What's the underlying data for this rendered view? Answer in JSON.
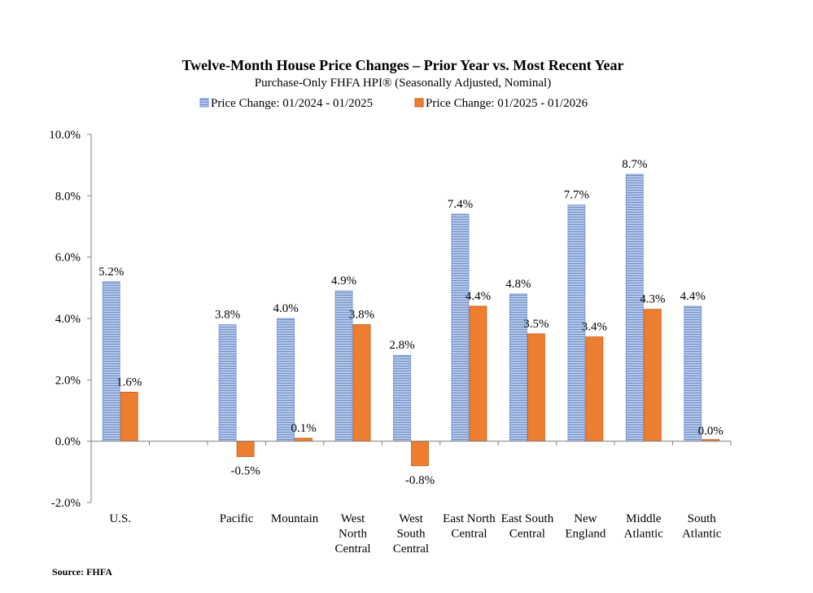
{
  "chart_data": {
    "type": "bar",
    "title": "Twelve-Month House Price Changes – Prior Year vs. Most Recent Year",
    "subtitle": "Purchase-Only FHFA HPI® (Seasonally Adjusted, Nominal)",
    "categories": [
      [
        "U.S."
      ],
      [
        ""
      ],
      [
        "Pacific"
      ],
      [
        "Mountain"
      ],
      [
        "West",
        "North",
        "Central"
      ],
      [
        "West",
        "South",
        "Central"
      ],
      [
        "East North",
        "Central"
      ],
      [
        "East South",
        "Central"
      ],
      [
        "New",
        "England"
      ],
      [
        "Middle",
        "Atlantic"
      ],
      [
        "South",
        "Atlantic"
      ]
    ],
    "series": [
      {
        "name": "Price Change:  01/2024 - 01/2025",
        "color": "#8EA9DB",
        "values": [
          5.2,
          null,
          3.8,
          4.0,
          4.9,
          2.8,
          7.4,
          4.8,
          7.7,
          8.7,
          4.4
        ],
        "labels": [
          "5.2%",
          "",
          "3.8%",
          "4.0%",
          "4.9%",
          "2.8%",
          "7.4%",
          "4.8%",
          "7.7%",
          "8.7%",
          "4.4%"
        ]
      },
      {
        "name": "Price Change:  01/2025 - 01/2026",
        "color": "#ED7D31",
        "values": [
          1.6,
          null,
          -0.5,
          0.1,
          3.8,
          -0.8,
          4.4,
          3.5,
          3.4,
          4.3,
          0.0
        ],
        "labels": [
          "1.6%",
          "",
          "-0.5%",
          "0.1%",
          "3.8%",
          "-0.8%",
          "4.4%",
          "3.5%",
          "3.4%",
          "4.3%",
          "0.0%"
        ]
      }
    ],
    "ylim": [
      -2.0,
      10.0
    ],
    "yticks": [
      -2.0,
      0.0,
      2.0,
      4.0,
      6.0,
      8.0,
      10.0
    ],
    "ytick_labels": [
      "-2.0%",
      "0.0%",
      "2.0%",
      "4.0%",
      "6.0%",
      "8.0%",
      "10.0%"
    ],
    "grid": false,
    "legend_position": "top-center"
  },
  "source": "Source: FHFA"
}
